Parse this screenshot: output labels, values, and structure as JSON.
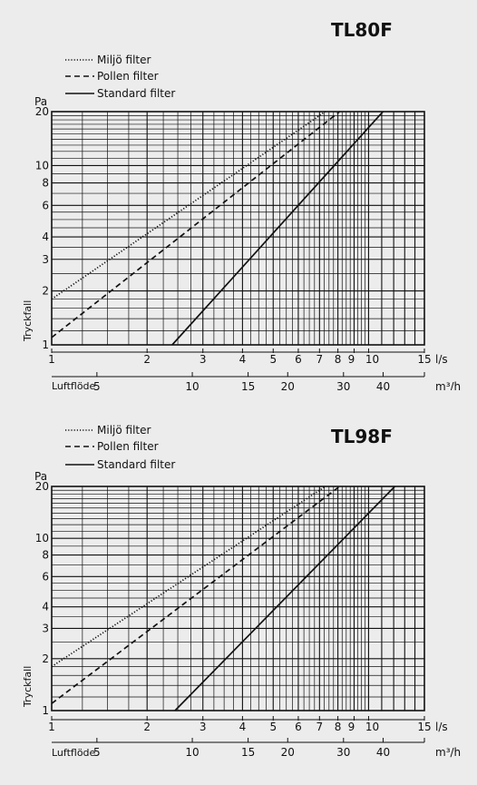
{
  "chart_data": [
    {
      "type": "line",
      "title": "TL80F",
      "ylabel": "Tryckfall",
      "yunit": "Pa",
      "xlabel": "Luftflöde",
      "xunit_ls": "l/s",
      "xunit_m3h": "m³/h",
      "xscale": "log",
      "yscale": "log",
      "xlim_ls": [
        1,
        15
      ],
      "ylim": [
        1,
        20
      ],
      "grid": true,
      "legend_position": "top-left",
      "x_ticks_ls": [
        "1",
        "2",
        "3",
        "4",
        "5",
        "6",
        "7",
        "8",
        "9",
        "10",
        "15"
      ],
      "x_ticks_m3h": [
        "5",
        "10",
        "15",
        "20",
        "30",
        "40"
      ],
      "y_ticks": [
        "1",
        "2",
        "3",
        "4",
        "6",
        "8",
        "10",
        "20"
      ],
      "series": [
        {
          "name": "Miljö filter",
          "style": "dotted",
          "x": [
            1,
            7.3
          ],
          "y": [
            1.8,
            20
          ]
        },
        {
          "name": "Pollen filter",
          "style": "dashed",
          "x": [
            1,
            8.1
          ],
          "y": [
            1.1,
            20
          ]
        },
        {
          "name": "Standard filter",
          "style": "solid",
          "x": [
            2.4,
            11.1
          ],
          "y": [
            1,
            20
          ]
        }
      ]
    },
    {
      "type": "line",
      "title": "TL98F",
      "ylabel": "Tryckfall",
      "yunit": "Pa",
      "xlabel": "Luftflöde",
      "xunit_ls": "l/s",
      "xunit_m3h": "m³/h",
      "xscale": "log",
      "yscale": "log",
      "xlim_ls": [
        1,
        15
      ],
      "ylim": [
        1,
        20
      ],
      "grid": true,
      "legend_position": "top-left",
      "x_ticks_ls": [
        "1",
        "2",
        "3",
        "4",
        "5",
        "6",
        "7",
        "8",
        "9",
        "10",
        "15"
      ],
      "x_ticks_m3h": [
        "5",
        "10",
        "15",
        "20",
        "30",
        "40"
      ],
      "y_ticks": [
        "1",
        "2",
        "3",
        "4",
        "6",
        "8",
        "10",
        "20"
      ],
      "series": [
        {
          "name": "Miljö filter",
          "style": "dotted",
          "x": [
            1,
            7.3
          ],
          "y": [
            1.8,
            20
          ]
        },
        {
          "name": "Pollen filter",
          "style": "dashed",
          "x": [
            1,
            8.1
          ],
          "y": [
            1.1,
            20
          ]
        },
        {
          "name": "Standard filter",
          "style": "solid",
          "x": [
            2.45,
            12.1
          ],
          "y": [
            1,
            20
          ]
        }
      ]
    }
  ],
  "colors": {
    "background": "#ececec",
    "ink": "#111111"
  }
}
